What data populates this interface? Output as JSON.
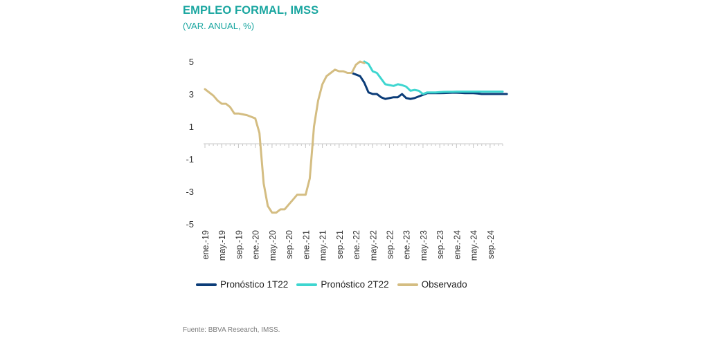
{
  "title": "EMPLEO FORMAL, IMSS",
  "subtitle": "(VAR. ANUAL, %)",
  "source": "Fuente: BBVA Research, IMSS.",
  "chart_data": {
    "type": "line",
    "ylim": [
      -5,
      5
    ],
    "y_ticks": [
      5,
      3,
      1,
      -1,
      -3,
      -5
    ],
    "y_tick_labels": [
      "5",
      "3",
      "1",
      "-1",
      "-3",
      "-5"
    ],
    "x_tick_labels": [
      "ene.-19",
      "may.-19",
      "sep.-19",
      "ene.-20",
      "may.-20",
      "sep.-20",
      "ene.-21",
      "may.-21",
      "sep.-21",
      "ene.-22",
      "may.-22",
      "sep.-22",
      "ene.-23",
      "may.-23",
      "sep.-23",
      "ene.-24",
      "may.-24",
      "sep.-24"
    ],
    "months": [
      "2019-01",
      "2019-02",
      "2019-03",
      "2019-04",
      "2019-05",
      "2019-06",
      "2019-07",
      "2019-08",
      "2019-09",
      "2019-10",
      "2019-11",
      "2019-12",
      "2020-01",
      "2020-02",
      "2020-03",
      "2020-04",
      "2020-05",
      "2020-06",
      "2020-07",
      "2020-08",
      "2020-09",
      "2020-10",
      "2020-11",
      "2020-12",
      "2021-01",
      "2021-02",
      "2021-03",
      "2021-04",
      "2021-05",
      "2021-06",
      "2021-07",
      "2021-08",
      "2021-09",
      "2021-10",
      "2021-11",
      "2021-12",
      "2022-01",
      "2022-02",
      "2022-03",
      "2022-04",
      "2022-05",
      "2022-06",
      "2022-07",
      "2022-08",
      "2022-09",
      "2022-10",
      "2022-11",
      "2022-12",
      "2023-01",
      "2023-02",
      "2023-03",
      "2023-04",
      "2023-05",
      "2023-06",
      "2023-07",
      "2023-08",
      "2023-09",
      "2023-10",
      "2023-11",
      "2023-12",
      "2024-01",
      "2024-02",
      "2024-03",
      "2024-04",
      "2024-05",
      "2024-06",
      "2024-07",
      "2024-08",
      "2024-09",
      "2024-10",
      "2024-11",
      "2024-12"
    ],
    "series": [
      {
        "name": "Pronóstico 1T22",
        "color": "#0b3c78",
        "start": "2021-12",
        "values": [
          4.3,
          4.2,
          4.1,
          3.7,
          3.1,
          3.0,
          3.0,
          2.8,
          2.7,
          2.75,
          2.8,
          2.8,
          3.0,
          2.75,
          2.7,
          2.75,
          2.85,
          2.95,
          3.05,
          3.05,
          3.05,
          3.05,
          3.06,
          3.07,
          3.08,
          3.08,
          3.07,
          3.05,
          3.05,
          3.05,
          3.03,
          3.0,
          3.0,
          3.0,
          3.0,
          3.0,
          3.0,
          3.0
        ]
      },
      {
        "name": "Pronóstico 2T22",
        "color": "#3ed6d0",
        "start": "2022-03",
        "values": [
          5.0,
          4.85,
          4.4,
          4.3,
          3.95,
          3.6,
          3.55,
          3.5,
          3.6,
          3.55,
          3.45,
          3.2,
          3.25,
          3.2,
          3.0,
          3.1,
          3.1,
          3.1,
          3.12,
          3.13,
          3.14,
          3.14,
          3.15,
          3.15,
          3.15,
          3.15,
          3.15,
          3.15,
          3.15,
          3.15,
          3.15,
          3.15,
          3.15,
          3.15
        ]
      },
      {
        "name": "Observado",
        "color": "#d4bd82",
        "start": "2019-01",
        "values": [
          3.3,
          3.1,
          2.9,
          2.6,
          2.4,
          2.4,
          2.2,
          1.8,
          1.8,
          1.75,
          1.7,
          1.6,
          1.5,
          0.6,
          -2.5,
          -3.9,
          -4.3,
          -4.3,
          -4.1,
          -4.1,
          -3.8,
          -3.5,
          -3.2,
          -3.2,
          -3.2,
          -2.2,
          1.0,
          2.6,
          3.6,
          4.1,
          4.3,
          4.5,
          4.4,
          4.4,
          4.3,
          4.3,
          4.8,
          5.0,
          4.9
        ]
      }
    ]
  }
}
